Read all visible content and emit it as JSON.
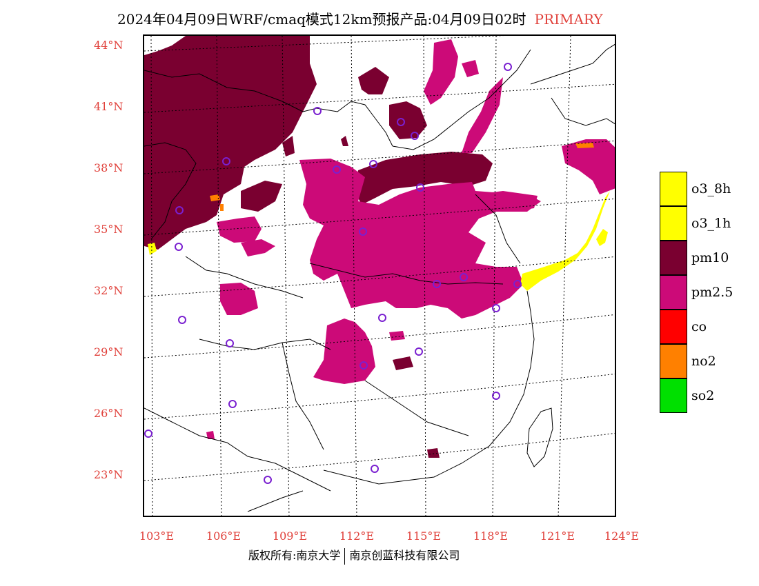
{
  "title": {
    "main": "2024年04月09日WRF/cmaq模式12km预报产品:04月09日02时",
    "tag": "PRIMARY"
  },
  "lat_labels": [
    "44°N",
    "41°N",
    "38°N",
    "35°N",
    "32°N",
    "29°N",
    "26°N",
    "23°N"
  ],
  "lon_labels": [
    "103°E",
    "106°E",
    "109°E",
    "112°E",
    "115°E",
    "118°E",
    "121°E",
    "124°E"
  ],
  "legend": [
    {
      "label": "o3_8h",
      "color": "#ffff00"
    },
    {
      "label": "o3_1h",
      "color": "#ffff00"
    },
    {
      "label": "pm10",
      "color": "#7a0030"
    },
    {
      "label": "pm2.5",
      "color": "#cc0a78"
    },
    {
      "label": "co",
      "color": "#ff0000"
    },
    {
      "label": "no2",
      "color": "#ff8000"
    },
    {
      "label": "so2",
      "color": "#00e000"
    }
  ],
  "footer": {
    "left": "版权所有:南京大学",
    "right": "南京创蓝科技有限公司"
  },
  "colors": {
    "pm10": "#7a0030",
    "pm25": "#cc0a78",
    "o3": "#ffff00",
    "no2": "#ff8000",
    "station": "#7a20d0",
    "label": "#e0403a"
  }
}
